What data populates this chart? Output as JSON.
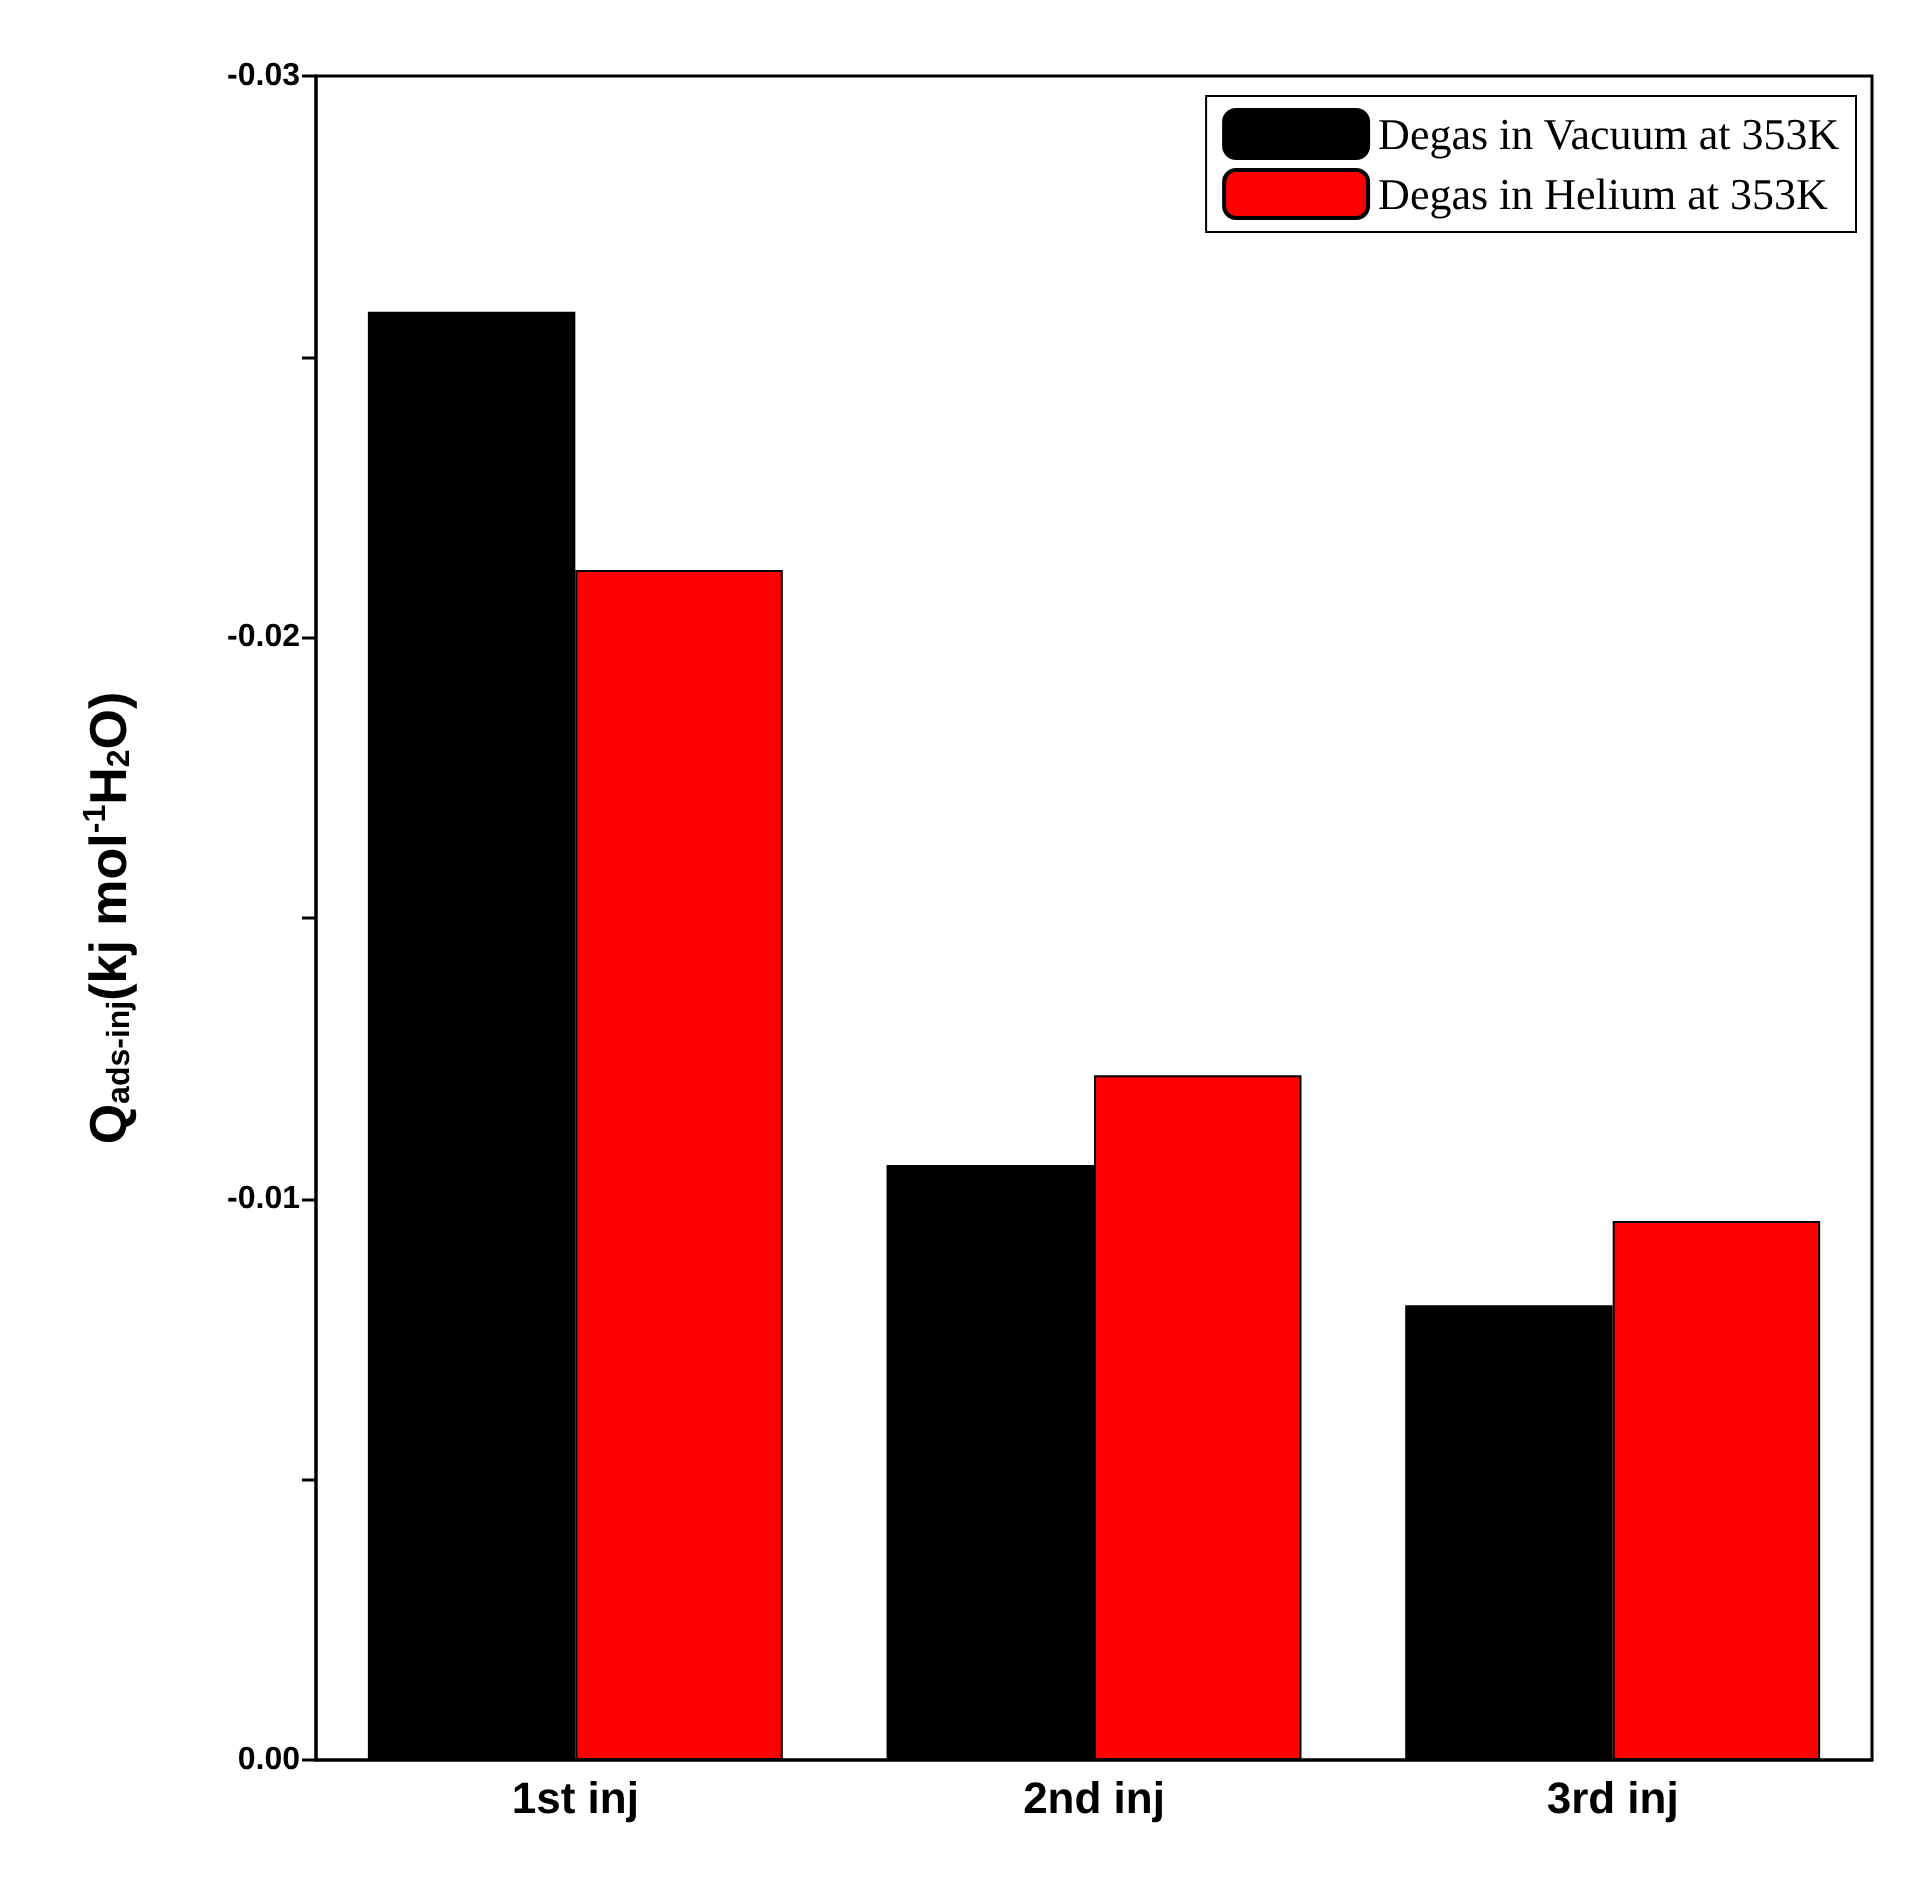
{
  "chart_data": {
    "type": "bar",
    "ylabel": "Q$_{ads-inj}$(kj mol$^{-1}$H$_{2}$O)",
    "categories": [
      "1st inj",
      "2nd inj",
      "3rd inj"
    ],
    "series": [
      {
        "name": "Degas in Vacuum at 353K",
        "color": "#000000",
        "values": [
          -0.0258,
          -0.0106,
          -0.0081
        ]
      },
      {
        "name": "Degas in Helium at 353K",
        "color": "#ff0000",
        "values": [
          -0.0212,
          -0.0122,
          -0.0096
        ]
      }
    ],
    "ylim": [
      0,
      -0.03
    ],
    "yticks": [
      {
        "value": 0,
        "label": "0.00"
      },
      {
        "value": -0.005,
        "label": null
      },
      {
        "value": -0.01,
        "label": "-0.01"
      },
      {
        "value": -0.015,
        "label": null
      },
      {
        "value": -0.02,
        "label": "-0.02"
      },
      {
        "value": -0.025,
        "label": null
      },
      {
        "value": -0.03,
        "label": "-0.03"
      }
    ],
    "grid": false,
    "legend": "top right"
  }
}
